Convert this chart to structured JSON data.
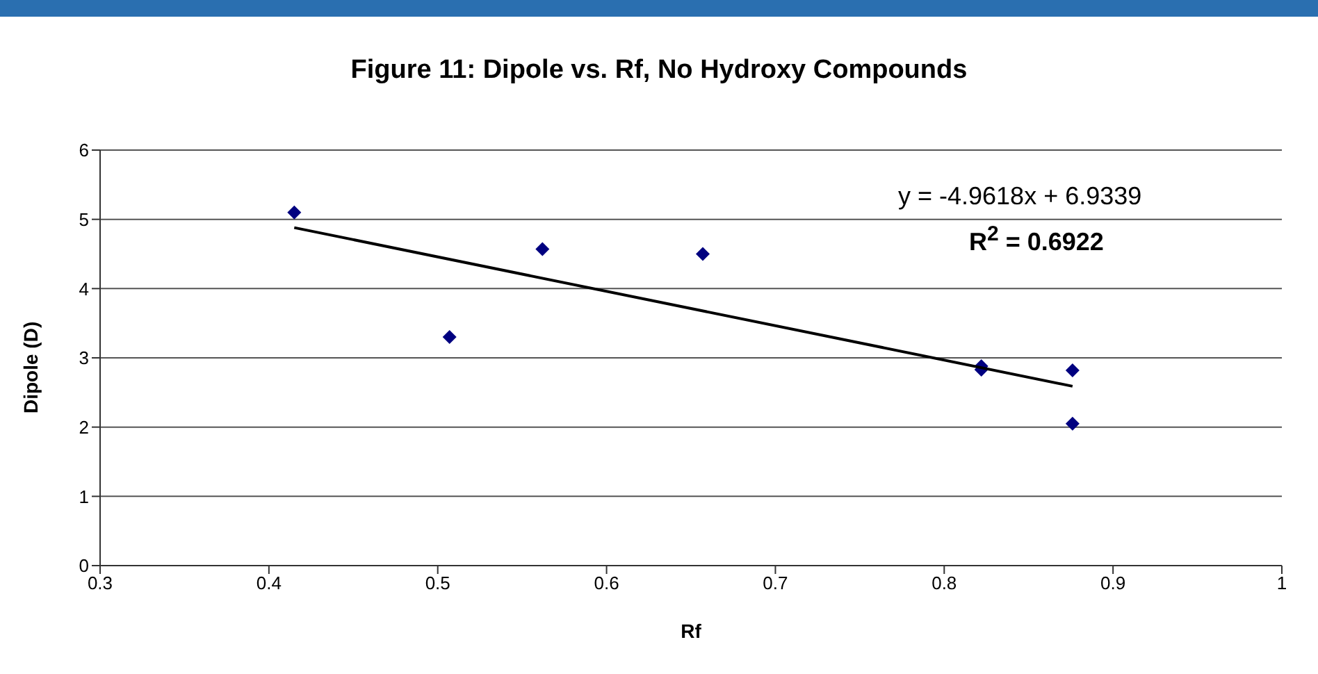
{
  "chart_data": {
    "type": "scatter",
    "title": "Figure 11: Dipole vs. Rf, No Hydroxy Compounds",
    "xlabel": "Rf",
    "ylabel": "Dipole (D)",
    "series": [
      {
        "color": "#000080",
        "marker": "diamond",
        "x": [
          0.415,
          0.507,
          0.562,
          0.657,
          0.822,
          0.822,
          0.876,
          0.876
        ],
        "values": [
          5.1,
          3.3,
          4.57,
          4.5,
          2.88,
          2.83,
          2.82,
          2.05
        ]
      },
      {
        "type": "line",
        "color": "#000000",
        "x": [
          0.415,
          0.876
        ],
        "values": [
          4.88,
          2.59
        ]
      }
    ],
    "annotations": [
      "y = -4.9618x + 6.9339",
      "R$^{2}$ = 0.6922"
    ],
    "xlim": [
      0.3,
      1
    ],
    "xticks": [
      0.3,
      0.4,
      0.5,
      0.6,
      0.7,
      0.8,
      0.9,
      1
    ],
    "ylim": [
      0,
      6
    ],
    "yticks": [
      0,
      1,
      2,
      3,
      4,
      5,
      6
    ],
    "grid": "y",
    "legend": false
  }
}
